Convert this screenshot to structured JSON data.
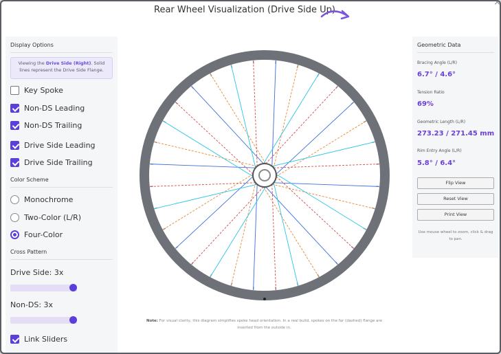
{
  "window": {
    "title": "Rear Wheel Visualization (Drive Side Up)",
    "close_glyph": "×"
  },
  "left_panel": {
    "display_options": {
      "heading": "Display Options",
      "info_prefix": "Viewing the ",
      "info_highlight": "Drive Side (Right)",
      "info_suffix": ". Solid lines represent the Drive Side Flange."
    },
    "checkboxes": [
      {
        "label": "Key Spoke",
        "checked": false
      },
      {
        "label": "Non-DS Leading",
        "checked": true
      },
      {
        "label": "Non-DS Trailing",
        "checked": true
      },
      {
        "label": "Drive Side Leading",
        "checked": true
      },
      {
        "label": "Drive Side Trailing",
        "checked": true
      }
    ],
    "color_scheme": {
      "heading": "Color Scheme",
      "options": [
        {
          "label": "Monochrome",
          "selected": false
        },
        {
          "label": "Two-Color (L/R)",
          "selected": false
        },
        {
          "label": "Four-Color",
          "selected": true
        }
      ]
    },
    "cross_pattern": {
      "heading": "Cross Pattern",
      "drive_side_label": "Drive Side: 3x",
      "drive_side_value": 3,
      "non_ds_label": "Non-DS: 3x",
      "non_ds_value": 3,
      "slider_max": 3,
      "link_sliders_label": "Link Sliders",
      "link_sliders_checked": true
    }
  },
  "wheel": {
    "spokes_per_side": 16,
    "colors": {
      "rim": "#6e7178",
      "ds_leading": "#3a6fd8",
      "ds_trailing": "#2bc4e8",
      "nds_leading": "#e8872a",
      "nds_trailing": "#d84a4a",
      "hub": "#555555"
    },
    "note_bold": "Note:",
    "note_text": " For visual clarity, this diagram simplifies spoke head orientation. In a real build, spokes on the far (dashed) flange are inserted from the outside in."
  },
  "right_panel": {
    "heading": "Geometric Data",
    "items": [
      {
        "label": "Bracing Angle (L/R)",
        "value": "6.7° / 4.6°"
      },
      {
        "label": "Tension Ratio",
        "value": "69%"
      },
      {
        "label": "Geometric Length (L/R)",
        "value": "273.23 / 271.45 mm"
      },
      {
        "label": "Rim Entry Angle (L/R)",
        "value": "5.8° / 6.4°"
      }
    ],
    "buttons": {
      "flip": "Flip View",
      "reset": "Reset View",
      "print": "Print View"
    },
    "hint": "Use mouse wheel to zoom, click & drag to pan."
  },
  "accent_color": "#5b3fd9"
}
